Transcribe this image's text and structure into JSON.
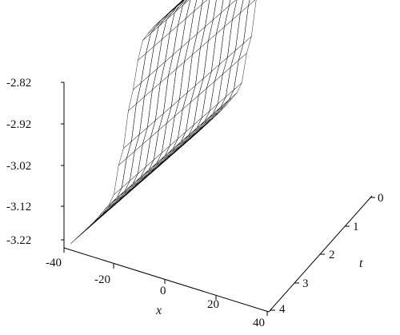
{
  "chart_data": {
    "type": "surface3d",
    "title": "",
    "z_axis": {
      "label": "",
      "ticks": [
        "-2.82",
        "-2.92",
        "-3.02",
        "-3.12",
        "-3.22"
      ],
      "range": [
        -3.22,
        -2.82
      ]
    },
    "x_axis": {
      "label": "x",
      "ticks": [
        "-40",
        "-20",
        "0",
        "20",
        "40"
      ],
      "range": [
        -40,
        40
      ]
    },
    "t_axis": {
      "label": "t",
      "ticks": [
        "0",
        "1",
        "2",
        "3",
        "4"
      ],
      "range": [
        0,
        4
      ]
    },
    "surface": {
      "description_free": true,
      "low_value": -3.22,
      "high_value": -2.82,
      "front_edge_profile": [
        {
          "x": -40,
          "z": -3.22
        },
        {
          "x": -30,
          "z": -3.22
        },
        {
          "x": -20,
          "z": -3.21
        },
        {
          "x": -15,
          "z": -3.1
        },
        {
          "x": -10,
          "z": -2.95
        },
        {
          "x": -5,
          "z": -2.83
        },
        {
          "x": 0,
          "z": -2.82
        },
        {
          "x": 40,
          "z": -2.82
        }
      ],
      "colormap": [
        "#e44b4b",
        "#8a6a6a",
        "#d9c3e9",
        "#86e3ee",
        "#4fe0f0"
      ]
    }
  }
}
